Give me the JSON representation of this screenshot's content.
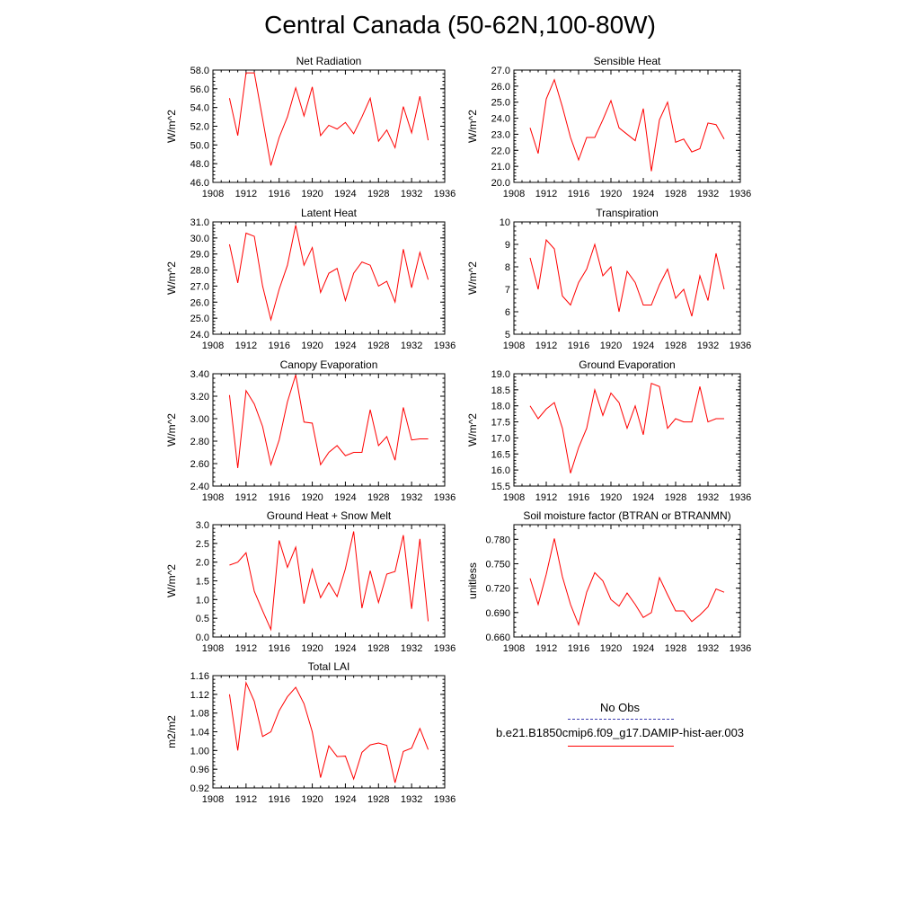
{
  "title": "Central Canada (50-62N,100-80W)",
  "legend": {
    "items": [
      {
        "label": "No Obs",
        "color": "#3b3bb0",
        "style": "dashed"
      },
      {
        "label": "b.e21.B1850cmip6.f09_g17.DAMIP-hist-aer.003",
        "color": "#ff0000",
        "style": "solid"
      }
    ]
  },
  "chart_data": [
    {
      "type": "line",
      "title": "Net Radiation",
      "ylabel": "W/m^2",
      "xlim": [
        1908,
        1936
      ],
      "xticks": [
        "1908",
        "1912",
        "1916",
        "1920",
        "1924",
        "1928",
        "1932",
        "1936"
      ],
      "ylim": [
        46,
        58
      ],
      "yticks": [
        "46.0",
        "48.0",
        "50.0",
        "52.0",
        "54.0",
        "56.0",
        "58.0"
      ],
      "x": [
        1910,
        1911,
        1912,
        1913,
        1914,
        1915,
        1916,
        1917,
        1918,
        1919,
        1920,
        1921,
        1922,
        1923,
        1924,
        1925,
        1926,
        1927,
        1928,
        1929,
        1930,
        1931,
        1932,
        1933,
        1934
      ],
      "series": [
        {
          "color": "#ff0000",
          "values": [
            55.0,
            51.0,
            57.7,
            57.7,
            52.8,
            47.8,
            50.8,
            53.0,
            56.1,
            53.1,
            56.2,
            51.0,
            52.1,
            51.7,
            52.4,
            51.2,
            53.0,
            55.0,
            50.4,
            51.6,
            49.7,
            54.1,
            51.3,
            55.2,
            50.5
          ]
        }
      ]
    },
    {
      "type": "line",
      "title": "Sensible Heat",
      "ylabel": "W/m^2",
      "xlim": [
        1908,
        1936
      ],
      "xticks": [
        "1908",
        "1912",
        "1916",
        "1920",
        "1924",
        "1928",
        "1932",
        "1936"
      ],
      "ylim": [
        20,
        27
      ],
      "yticks": [
        "20.0",
        "21.0",
        "22.0",
        "23.0",
        "24.0",
        "25.0",
        "26.0",
        "27.0"
      ],
      "x": [
        1910,
        1911,
        1912,
        1913,
        1914,
        1915,
        1916,
        1917,
        1918,
        1919,
        1920,
        1921,
        1922,
        1923,
        1924,
        1925,
        1926,
        1927,
        1928,
        1929,
        1930,
        1931,
        1932,
        1933,
        1934
      ],
      "series": [
        {
          "color": "#ff0000",
          "values": [
            23.4,
            21.8,
            25.2,
            26.4,
            24.7,
            22.8,
            21.4,
            22.8,
            22.8,
            23.9,
            25.1,
            23.4,
            23.0,
            22.6,
            24.6,
            20.7,
            23.9,
            25.0,
            22.5,
            22.7,
            21.9,
            22.1,
            23.7,
            23.6,
            22.7
          ]
        }
      ]
    },
    {
      "type": "line",
      "title": "Latent Heat",
      "ylabel": "W/m^2",
      "xlim": [
        1908,
        1936
      ],
      "xticks": [
        "1908",
        "1912",
        "1916",
        "1920",
        "1924",
        "1928",
        "1932",
        "1936"
      ],
      "ylim": [
        24,
        31
      ],
      "yticks": [
        "24.0",
        "25.0",
        "26.0",
        "27.0",
        "28.0",
        "29.0",
        "30.0",
        "31.0"
      ],
      "x": [
        1910,
        1911,
        1912,
        1913,
        1914,
        1915,
        1916,
        1917,
        1918,
        1919,
        1920,
        1921,
        1922,
        1923,
        1924,
        1925,
        1926,
        1927,
        1928,
        1929,
        1930,
        1931,
        1932,
        1933,
        1934
      ],
      "series": [
        {
          "color": "#ff0000",
          "values": [
            29.6,
            27.2,
            30.3,
            30.1,
            27.0,
            24.9,
            26.8,
            28.3,
            30.8,
            28.3,
            29.4,
            26.6,
            27.8,
            28.1,
            26.1,
            27.8,
            28.5,
            28.3,
            27.0,
            27.3,
            26.0,
            29.3,
            26.9,
            29.1,
            27.4
          ]
        }
      ]
    },
    {
      "type": "line",
      "title": "Transpiration",
      "ylabel": "W/m^2",
      "xlim": [
        1908,
        1936
      ],
      "xticks": [
        "1908",
        "1912",
        "1916",
        "1920",
        "1924",
        "1928",
        "1932",
        "1936"
      ],
      "ylim": [
        5,
        10
      ],
      "yticks": [
        "5",
        "6",
        "7",
        "8",
        "9",
        "10"
      ],
      "x": [
        1910,
        1911,
        1912,
        1913,
        1914,
        1915,
        1916,
        1917,
        1918,
        1919,
        1920,
        1921,
        1922,
        1923,
        1924,
        1925,
        1926,
        1927,
        1928,
        1929,
        1930,
        1931,
        1932,
        1933,
        1934
      ],
      "series": [
        {
          "color": "#ff0000",
          "values": [
            8.4,
            7.0,
            9.2,
            8.8,
            6.7,
            6.3,
            7.3,
            7.9,
            9.0,
            7.6,
            8.0,
            6.0,
            7.8,
            7.3,
            6.3,
            6.3,
            7.2,
            7.9,
            6.6,
            7.0,
            5.8,
            7.6,
            6.5,
            8.6,
            7.0
          ]
        }
      ]
    },
    {
      "type": "line",
      "title": "Canopy Evaporation",
      "ylabel": "W/m^2",
      "xlim": [
        1908,
        1936
      ],
      "xticks": [
        "1908",
        "1912",
        "1916",
        "1920",
        "1924",
        "1928",
        "1932",
        "1936"
      ],
      "ylim": [
        2.4,
        3.4
      ],
      "yticks": [
        "2.40",
        "2.60",
        "2.80",
        "3.00",
        "3.20",
        "3.40"
      ],
      "x": [
        1910,
        1911,
        1912,
        1913,
        1914,
        1915,
        1916,
        1917,
        1918,
        1919,
        1920,
        1921,
        1922,
        1923,
        1924,
        1925,
        1926,
        1927,
        1928,
        1929,
        1930,
        1931,
        1932,
        1933,
        1934
      ],
      "series": [
        {
          "color": "#ff0000",
          "values": [
            3.21,
            2.56,
            3.25,
            3.13,
            2.93,
            2.59,
            2.81,
            3.15,
            3.39,
            2.97,
            2.96,
            2.59,
            2.7,
            2.76,
            2.67,
            2.7,
            2.7,
            3.08,
            2.76,
            2.84,
            2.63,
            3.1,
            2.81,
            2.82,
            2.82
          ]
        }
      ]
    },
    {
      "type": "line",
      "title": "Ground Evaporation",
      "ylabel": "W/m^2",
      "xlim": [
        1908,
        1936
      ],
      "xticks": [
        "1908",
        "1912",
        "1916",
        "1920",
        "1924",
        "1928",
        "1932",
        "1936"
      ],
      "ylim": [
        15.5,
        19.0
      ],
      "yticks": [
        "15.5",
        "16.0",
        "16.5",
        "17.0",
        "17.5",
        "18.0",
        "18.5",
        "19.0"
      ],
      "x": [
        1910,
        1911,
        1912,
        1913,
        1914,
        1915,
        1916,
        1917,
        1918,
        1919,
        1920,
        1921,
        1922,
        1923,
        1924,
        1925,
        1926,
        1927,
        1928,
        1929,
        1930,
        1931,
        1932,
        1933,
        1934
      ],
      "series": [
        {
          "color": "#ff0000",
          "values": [
            18.0,
            17.6,
            17.9,
            18.1,
            17.3,
            15.9,
            16.7,
            17.3,
            18.5,
            17.7,
            18.4,
            18.1,
            17.3,
            18.0,
            17.1,
            18.7,
            18.6,
            17.3,
            17.6,
            17.5,
            17.5,
            18.6,
            17.5,
            17.6,
            17.6
          ]
        }
      ]
    },
    {
      "type": "line",
      "title": "Ground Heat + Snow Melt",
      "ylabel": "W/m^2",
      "xlim": [
        1908,
        1936
      ],
      "xticks": [
        "1908",
        "1912",
        "1916",
        "1920",
        "1924",
        "1928",
        "1932",
        "1936"
      ],
      "ylim": [
        0,
        3
      ],
      "yticks": [
        "0.0",
        "0.5",
        "1.0",
        "1.5",
        "2.0",
        "2.5",
        "3.0"
      ],
      "x": [
        1910,
        1911,
        1912,
        1913,
        1914,
        1915,
        1916,
        1917,
        1918,
        1919,
        1920,
        1921,
        1922,
        1923,
        1924,
        1925,
        1926,
        1927,
        1928,
        1929,
        1930,
        1931,
        1932,
        1933,
        1934
      ],
      "series": [
        {
          "color": "#ff0000",
          "values": [
            1.92,
            2.0,
            2.25,
            1.22,
            0.7,
            0.2,
            2.58,
            1.86,
            2.4,
            0.89,
            1.81,
            1.05,
            1.45,
            1.08,
            1.82,
            2.82,
            0.77,
            1.77,
            0.92,
            1.68,
            1.75,
            2.72,
            0.75,
            2.62,
            0.42
          ]
        }
      ]
    },
    {
      "type": "line",
      "title": "Soil moisture factor (BTRAN or BTRANMN)",
      "ylabel": "unitless",
      "xlim": [
        1908,
        1936
      ],
      "xticks": [
        "1908",
        "1912",
        "1916",
        "1920",
        "1924",
        "1928",
        "1932",
        "1936"
      ],
      "ylim": [
        0.66,
        0.798
      ],
      "yticks": [
        "0.660",
        "0.690",
        "0.720",
        "0.750",
        "0.780"
      ],
      "x": [
        1910,
        1911,
        1912,
        1913,
        1914,
        1915,
        1916,
        1917,
        1918,
        1919,
        1920,
        1921,
        1922,
        1923,
        1924,
        1925,
        1926,
        1927,
        1928,
        1929,
        1930,
        1931,
        1932,
        1933,
        1934
      ],
      "series": [
        {
          "color": "#ff0000",
          "values": [
            0.732,
            0.7,
            0.737,
            0.781,
            0.734,
            0.7,
            0.675,
            0.715,
            0.739,
            0.729,
            0.706,
            0.698,
            0.714,
            0.7,
            0.684,
            0.69,
            0.733,
            0.712,
            0.692,
            0.692,
            0.679,
            0.687,
            0.697,
            0.719,
            0.715
          ]
        }
      ]
    },
    {
      "type": "line",
      "title": "Total LAI",
      "ylabel": "m2/m2",
      "xlim": [
        1908,
        1936
      ],
      "xticks": [
        "1908",
        "1912",
        "1916",
        "1920",
        "1924",
        "1928",
        "1932",
        "1936"
      ],
      "ylim": [
        0.92,
        1.16
      ],
      "yticks": [
        "0.92",
        "0.96",
        "1.00",
        "1.04",
        "1.08",
        "1.12",
        "1.16"
      ],
      "x": [
        1910,
        1911,
        1912,
        1913,
        1914,
        1915,
        1916,
        1917,
        1918,
        1919,
        1920,
        1921,
        1922,
        1923,
        1924,
        1925,
        1926,
        1927,
        1928,
        1929,
        1930,
        1931,
        1932,
        1933,
        1934
      ],
      "series": [
        {
          "color": "#ff0000",
          "values": [
            1.12,
            1.0,
            1.145,
            1.105,
            1.03,
            1.04,
            1.085,
            1.115,
            1.135,
            1.1,
            1.04,
            0.942,
            1.01,
            0.987,
            0.988,
            0.939,
            0.996,
            1.012,
            1.016,
            1.011,
            0.931,
            0.998,
            1.005,
            1.047,
            1.002
          ]
        }
      ]
    }
  ]
}
